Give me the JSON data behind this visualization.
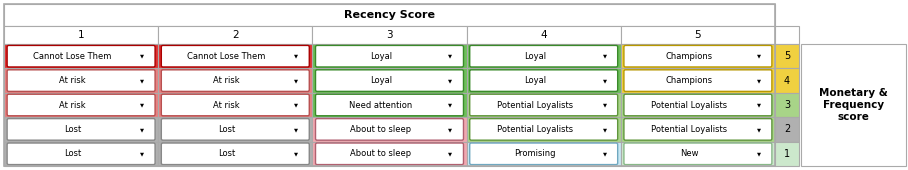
{
  "title": "Recency Score",
  "col_headers": [
    "1",
    "2",
    "3",
    "4",
    "5"
  ],
  "row_scores": [
    "5",
    "4",
    "3",
    "2",
    "1"
  ],
  "right_label": "Monetary &\nFrequency\nscore",
  "cells": [
    [
      "Cannot Lose Them",
      "Cannot Lose Them",
      "Loyal",
      "Loyal",
      "Champions"
    ],
    [
      "At risk",
      "At risk",
      "Loyal",
      "Loyal",
      "Champions"
    ],
    [
      "At risk",
      "At risk",
      "Need attention",
      "Potential Loyalists",
      "Potential Loyalists"
    ],
    [
      "Lost",
      "Lost",
      "About to sleep",
      "Potential Loyalists",
      "Potential Loyalists"
    ],
    [
      "Lost",
      "Lost",
      "About to sleep",
      "Promising",
      "New"
    ]
  ],
  "cell_bg_colors": [
    [
      "#e03030",
      "#e03030",
      "#6dbf5a",
      "#6dbf5a",
      "#f0d040"
    ],
    [
      "#e88080",
      "#e88080",
      "#6dbf5a",
      "#6dbf5a",
      "#f0d040"
    ],
    [
      "#e88080",
      "#e88080",
      "#6dbf5a",
      "#a8d488",
      "#a8d488"
    ],
    [
      "#b0b0b0",
      "#b0b0b0",
      "#f0a8b0",
      "#a8d488",
      "#a8d488"
    ],
    [
      "#b0b0b0",
      "#b0b0b0",
      "#f0a8b0",
      "#c8e8f4",
      "#cce8cc"
    ]
  ],
  "cell_border_colors": [
    [
      "#aa0000",
      "#aa0000",
      "#3a8a2a",
      "#3a8a2a",
      "#b89800"
    ],
    [
      "#b85050",
      "#b85050",
      "#3a8a2a",
      "#3a8a2a",
      "#b89800"
    ],
    [
      "#b85050",
      "#b85050",
      "#3a8a2a",
      "#60963c",
      "#60963c"
    ],
    [
      "#888888",
      "#888888",
      "#b06070",
      "#60963c",
      "#60963c"
    ],
    [
      "#888888",
      "#888888",
      "#b06070",
      "#70a8c0",
      "#88b888"
    ]
  ],
  "row_score_bg": [
    "#f0d040",
    "#f0d040",
    "#a8d488",
    "#b0b0b0",
    "#cce8cc"
  ],
  "outer_border_color": "#aaaaaa",
  "header_bg": "#ffffff"
}
